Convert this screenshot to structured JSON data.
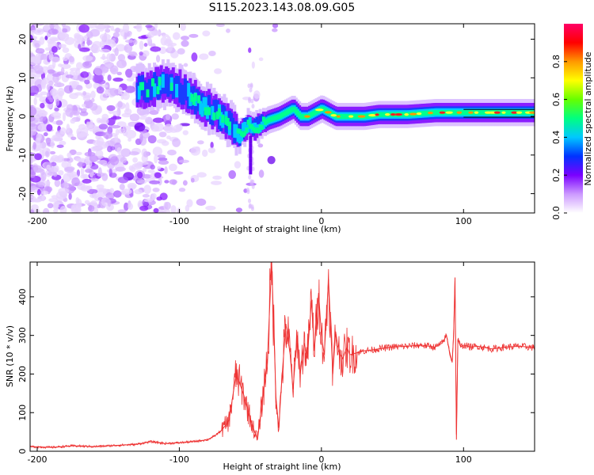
{
  "title": "S115.2023.143.08.09.G05",
  "chart_data": [
    {
      "type": "heatmap",
      "xlabel": "Height of straight line (km)",
      "ylabel": "Frequency (Hz)",
      "xlim": [
        -205,
        150
      ],
      "ylim": [
        -25,
        24
      ],
      "x_ticks": [
        -200,
        -100,
        0,
        100
      ],
      "x_tick_labels": [
        "-200",
        "-100",
        "0",
        "100"
      ],
      "y_ticks": [
        -20,
        -10,
        0,
        10,
        20
      ],
      "y_tick_labels": [
        "-20",
        "-10",
        "0",
        "10",
        "20"
      ],
      "colorbar": {
        "label": "Normalized spectral amplitude",
        "range": [
          0,
          1
        ],
        "ticks": [
          0,
          0.2,
          0.4,
          0.6,
          0.8
        ],
        "tick_labels": [
          "0.0",
          "0.2",
          "0.4",
          "0.6",
          "0.8"
        ],
        "colors": [
          "#ffffff",
          "#cc99ff",
          "#7a00ff",
          "#0033ff",
          "#00c8ff",
          "#00ff80",
          "#66ff00",
          "#ffff00",
          "#ff9900",
          "#ff0000",
          "#ff0066"
        ]
      },
      "ridge": {
        "x": [
          -125,
          -115,
          -105,
          -95,
          -85,
          -75,
          -65,
          -58,
          -52,
          -45,
          -38,
          -30,
          -25,
          -20,
          -15,
          -10,
          -5,
          0,
          5,
          10,
          15,
          20,
          30,
          40,
          60,
          80,
          100,
          120,
          150
        ],
        "y": [
          7,
          8,
          8,
          6,
          3,
          1,
          -2,
          -5,
          -2,
          -3,
          -1,
          0,
          1,
          2,
          0,
          0,
          1,
          2,
          1,
          0,
          0,
          0,
          0,
          0.5,
          0.5,
          1,
          1,
          1,
          1
        ]
      },
      "grid": false
    },
    {
      "type": "line",
      "xlabel": "Height of straight line (km)",
      "ylabel": "SNR (10 * v/v)",
      "xlim": [
        -205,
        150
      ],
      "ylim": [
        0,
        490
      ],
      "x_ticks": [
        -200,
        -100,
        0,
        100
      ],
      "x_tick_labels": [
        "-200",
        "-100",
        "0",
        "100"
      ],
      "y_ticks": [
        0,
        100,
        200,
        300,
        400
      ],
      "y_tick_labels": [
        "0",
        "100",
        "200",
        "300",
        "400"
      ],
      "series_color": "#ee3333",
      "x": [
        -205,
        -190,
        -175,
        -160,
        -145,
        -130,
        -120,
        -110,
        -100,
        -90,
        -80,
        -75,
        -70,
        -65,
        -60,
        -55,
        -52,
        -48,
        -45,
        -42,
        -38,
        -35,
        -32,
        -30,
        -28,
        -25,
        -22,
        -20,
        -17,
        -15,
        -12,
        -10,
        -7,
        -5,
        -2,
        0,
        2,
        5,
        8,
        10,
        12,
        15,
        18,
        20,
        25,
        30,
        35,
        40,
        50,
        60,
        70,
        80,
        85,
        88,
        90,
        92,
        93,
        94,
        95,
        96,
        98,
        100,
        105,
        110,
        120,
        130,
        140,
        150
      ],
      "y": [
        12,
        10,
        14,
        12,
        15,
        18,
        25,
        20,
        22,
        25,
        30,
        40,
        55,
        80,
        200,
        150,
        110,
        60,
        30,
        120,
        240,
        490,
        140,
        60,
        180,
        330,
        250,
        160,
        300,
        200,
        280,
        240,
        390,
        260,
        410,
        300,
        250,
        445,
        200,
        310,
        260,
        240,
        270,
        250,
        255,
        260,
        262,
        265,
        270,
        272,
        275,
        270,
        280,
        300,
        260,
        230,
        300,
        450,
        30,
        290,
        270,
        275,
        270,
        272,
        265,
        270,
        272,
        268
      ],
      "grid": false
    }
  ]
}
